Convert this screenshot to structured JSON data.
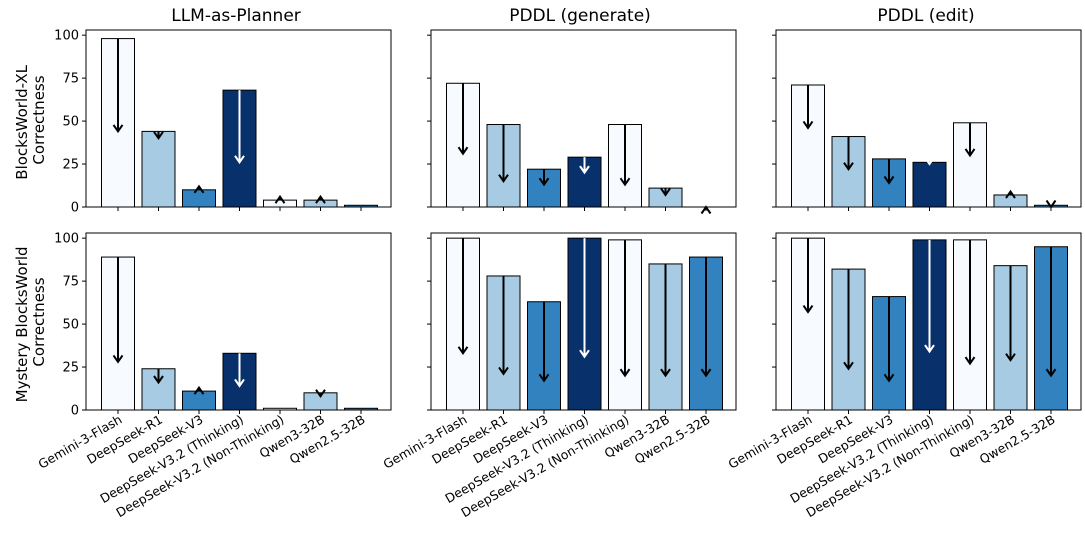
{
  "colors": {
    "very_light": "#f7fbff",
    "light": "#a6cbe3",
    "medium": "#3282bf",
    "dark": "#08306b",
    "edge": "#000000",
    "arrow_dark": "#000000",
    "arrow_light": "#ffffff"
  },
  "column_titles": [
    "LLM-as-Planner",
    "PDDL (generate)",
    "PDDL (edit)"
  ],
  "row_labels": [
    [
      "BlocksWorld-XL",
      "Correctness"
    ],
    [
      "Mystery BlocksWorld",
      "Correctness"
    ]
  ],
  "y_ticks": [
    0,
    25,
    50,
    75,
    100
  ],
  "chart_data": [
    {
      "type": "bar",
      "panel": "row1-col1",
      "title": "LLM-as-Planner",
      "ylabel": "BlocksWorld-XL Correctness",
      "ylim": [
        0,
        103
      ],
      "categories": [
        "Gemini-3-Flash",
        "DeepSeek-R1",
        "DeepSeek-V3",
        "DeepSeek-V3.2 (Thinking)",
        "DeepSeek-V3.2 (Non-Thinking)",
        "Qwen3-32B",
        "Qwen2.5-32B"
      ],
      "bar_colors": [
        "very_light",
        "light",
        "medium",
        "dark",
        "very_light",
        "light",
        "medium"
      ],
      "values": [
        98,
        44,
        10,
        68,
        4,
        4,
        1
      ],
      "arrow_to": [
        44,
        40,
        12,
        26,
        6,
        6,
        null
      ]
    },
    {
      "type": "bar",
      "panel": "row1-col2",
      "title": "PDDL (generate)",
      "ylabel": "",
      "ylim": [
        0,
        103
      ],
      "categories": [
        "Gemini-3-Flash",
        "DeepSeek-R1",
        "DeepSeek-V3",
        "DeepSeek-V3.2 (Thinking)",
        "DeepSeek-V3.2 (Non-Thinking)",
        "Qwen3-32B",
        "Qwen2.5-32B"
      ],
      "bar_colors": [
        "very_light",
        "light",
        "medium",
        "dark",
        "very_light",
        "light",
        "medium"
      ],
      "values": [
        72,
        48,
        22,
        29,
        48,
        11,
        0
      ],
      "arrow_to": [
        31,
        15,
        13,
        20,
        13,
        7,
        0
      ]
    },
    {
      "type": "bar",
      "panel": "row1-col3",
      "title": "PDDL (edit)",
      "ylabel": "",
      "ylim": [
        0,
        103
      ],
      "categories": [
        "Gemini-3-Flash",
        "DeepSeek-R1",
        "DeepSeek-V3",
        "DeepSeek-V3.2 (Thinking)",
        "DeepSeek-V3.2 (Non-Thinking)",
        "Qwen3-32B",
        "Qwen2.5-32B"
      ],
      "bar_colors": [
        "very_light",
        "light",
        "medium",
        "dark",
        "very_light",
        "light",
        "medium"
      ],
      "values": [
        71,
        41,
        28,
        26,
        49,
        7,
        1
      ],
      "arrow_to": [
        46,
        22,
        14,
        25,
        30,
        9,
        0
      ]
    },
    {
      "type": "bar",
      "panel": "row2-col1",
      "title": "",
      "ylabel": "Mystery BlocksWorld Correctness",
      "ylim": [
        0,
        103
      ],
      "categories": [
        "Gemini-3-Flash",
        "DeepSeek-R1",
        "DeepSeek-V3",
        "DeepSeek-V3.2 (Thinking)",
        "DeepSeek-V3.2 (Non-Thinking)",
        "Qwen3-32B",
        "Qwen2.5-32B"
      ],
      "bar_colors": [
        "very_light",
        "light",
        "medium",
        "dark",
        "very_light",
        "light",
        "medium"
      ],
      "values": [
        89,
        24,
        11,
        33,
        1,
        10,
        1
      ],
      "arrow_to": [
        28,
        16,
        13,
        14,
        null,
        8,
        null
      ]
    },
    {
      "type": "bar",
      "panel": "row2-col2",
      "title": "",
      "ylabel": "",
      "ylim": [
        0,
        103
      ],
      "categories": [
        "Gemini-3-Flash",
        "DeepSeek-R1",
        "DeepSeek-V3",
        "DeepSeek-V3.2 (Thinking)",
        "DeepSeek-V3.2 (Non-Thinking)",
        "Qwen3-32B",
        "Qwen2.5-32B"
      ],
      "bar_colors": [
        "very_light",
        "light",
        "medium",
        "dark",
        "very_light",
        "light",
        "medium"
      ],
      "values": [
        100,
        78,
        63,
        100,
        99,
        85,
        89
      ],
      "arrow_to": [
        33,
        21,
        17,
        31,
        20,
        20,
        20
      ]
    },
    {
      "type": "bar",
      "panel": "row2-col3",
      "title": "",
      "ylabel": "",
      "ylim": [
        0,
        103
      ],
      "categories": [
        "Gemini-3-Flash",
        "DeepSeek-R1",
        "DeepSeek-V3",
        "DeepSeek-V3.2 (Thinking)",
        "DeepSeek-V3.2 (Non-Thinking)",
        "Qwen3-32B",
        "Qwen2.5-32B"
      ],
      "bar_colors": [
        "very_light",
        "light",
        "medium",
        "dark",
        "very_light",
        "light",
        "medium"
      ],
      "values": [
        100,
        82,
        66,
        99,
        99,
        84,
        95
      ],
      "arrow_to": [
        57,
        24,
        17,
        34,
        27,
        29,
        20
      ]
    }
  ]
}
